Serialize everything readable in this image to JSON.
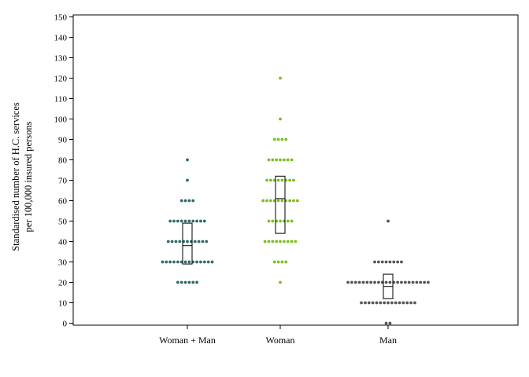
{
  "chart_data": {
    "type": "dot-plot with box",
    "ylabel_lines": [
      "Standardised number of H.C. services",
      "per 100,000 insured persons"
    ],
    "xlabel": "",
    "ylim": [
      0,
      150
    ],
    "yticks": [
      0,
      10,
      20,
      30,
      40,
      50,
      60,
      70,
      80,
      90,
      100,
      110,
      120,
      130,
      140,
      150
    ],
    "grid": false,
    "categories": [
      "Woman + Man",
      "Woman",
      "Man"
    ],
    "series": [
      {
        "category": "Woman + Man",
        "color": "#2e6b6b",
        "points": [
          {
            "y": 80,
            "n": 1
          },
          {
            "y": 70,
            "n": 1
          },
          {
            "y": 60,
            "n": 4
          },
          {
            "y": 50,
            "n": 10
          },
          {
            "y": 40,
            "n": 11
          },
          {
            "y": 30,
            "n": 14
          },
          {
            "y": 20,
            "n": 6
          }
        ],
        "box": {
          "q1": 29,
          "median": 38,
          "q3": 49
        }
      },
      {
        "category": "Woman",
        "color": "#7cbf1f",
        "points": [
          {
            "y": 120,
            "n": 1
          },
          {
            "y": 100,
            "n": 1
          },
          {
            "y": 90,
            "n": 4
          },
          {
            "y": 80,
            "n": 7
          },
          {
            "y": 70,
            "n": 8
          },
          {
            "y": 60,
            "n": 10
          },
          {
            "y": 50,
            "n": 7
          },
          {
            "y": 40,
            "n": 9
          },
          {
            "y": 30,
            "n": 4
          },
          {
            "y": 20,
            "n": 1
          }
        ],
        "box": {
          "q1": 44,
          "median": 61,
          "q3": 72
        }
      },
      {
        "category": "Man",
        "color": "#555555",
        "points": [
          {
            "y": 50,
            "n": 1
          },
          {
            "y": 30,
            "n": 8
          },
          {
            "y": 20,
            "n": 22
          },
          {
            "y": 10,
            "n": 15
          },
          {
            "y": 0,
            "n": 2
          }
        ],
        "box": {
          "q1": 12,
          "median": 18,
          "q3": 24
        }
      }
    ]
  }
}
